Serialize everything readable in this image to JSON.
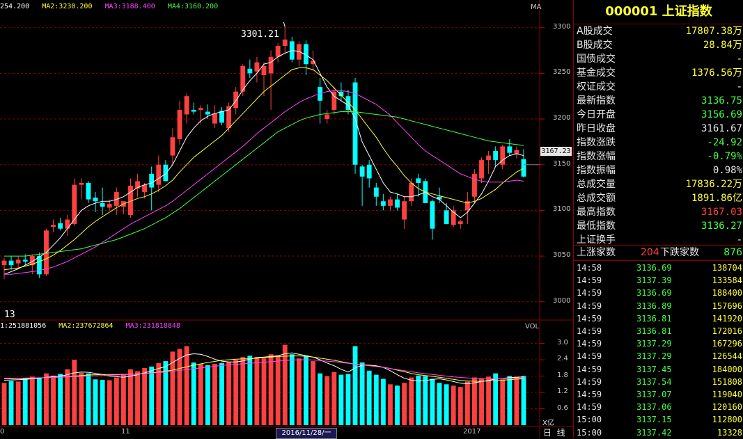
{
  "main_legend": {
    "ma1": "254.200",
    "ma2": "MA2:3230.200",
    "ma3": "MA3:3188.400",
    "ma4": "MA4:3160.200",
    "corner": "MA",
    "colors": {
      "ma1": "#ffffff",
      "ma2": "#ffff33",
      "ma3": "#ff44ff",
      "ma4": "#44ff44"
    }
  },
  "vol_legend": {
    "ma1": "1:251881056",
    "ma2": "MA2:237672864",
    "ma3": "MA3:231818848",
    "corner": "VOL"
  },
  "annotations": {
    "high_label": "3301.21",
    "low_label": "13"
  },
  "price_axis": {
    "ticks": [
      "3300",
      "3250",
      "3200",
      "3150",
      "3100",
      "3050",
      "3000"
    ],
    "current": "3167.23"
  },
  "vol_axis": {
    "ticks": [
      "3.0",
      "2.4",
      "1.8",
      "1.2",
      "0.6"
    ],
    "unit": "X亿"
  },
  "time_axis": {
    "labels": [
      "0",
      "11",
      "2016/11/28/一",
      "2017"
    ]
  },
  "bottom_tabs": {
    "day": "日",
    "line": "线"
  },
  "chart_data": {
    "type": "candlestick",
    "ylim": [
      2980,
      3315
    ],
    "vol_ylim": [
      0,
      3.4
    ],
    "colors": {
      "up": "#ff4040",
      "down": "#00ffff"
    },
    "candles": [
      {
        "o": 3040,
        "h": 3048,
        "l": 3025,
        "c": 3045,
        "v": 1.55
      },
      {
        "o": 3045,
        "h": 3050,
        "l": 3035,
        "c": 3040,
        "v": 1.62
      },
      {
        "o": 3042,
        "h": 3050,
        "l": 3038,
        "c": 3046,
        "v": 1.6
      },
      {
        "o": 3046,
        "h": 3052,
        "l": 3040,
        "c": 3044,
        "v": 1.7
      },
      {
        "o": 3040,
        "h": 3052,
        "l": 3030,
        "c": 3050,
        "v": 1.78
      },
      {
        "o": 3050,
        "h": 3054,
        "l": 3026,
        "c": 3030,
        "v": 1.72
      },
      {
        "o": 3030,
        "h": 3080,
        "l": 3028,
        "c": 3078,
        "v": 1.9
      },
      {
        "o": 3082,
        "h": 3090,
        "l": 3076,
        "c": 3084,
        "v": 1.82
      },
      {
        "o": 3086,
        "h": 3092,
        "l": 3078,
        "c": 3080,
        "v": 1.88
      },
      {
        "o": 3080,
        "h": 3095,
        "l": 3072,
        "c": 3090,
        "v": 2.05
      },
      {
        "o": 3085,
        "h": 3135,
        "l": 3083,
        "c": 3128,
        "v": 2.4
      },
      {
        "o": 3128,
        "h": 3135,
        "l": 3112,
        "c": 3130,
        "v": 1.92
      },
      {
        "o": 3130,
        "h": 3132,
        "l": 3108,
        "c": 3112,
        "v": 1.9
      },
      {
        "o": 3114,
        "h": 3120,
        "l": 3098,
        "c": 3110,
        "v": 1.68
      },
      {
        "o": 3108,
        "h": 3125,
        "l": 3095,
        "c": 3104,
        "v": 1.66
      },
      {
        "o": 3103,
        "h": 3112,
        "l": 3100,
        "c": 3107,
        "v": 1.65
      },
      {
        "o": 3105,
        "h": 3125,
        "l": 3095,
        "c": 3120,
        "v": 1.75
      },
      {
        "o": 3104,
        "h": 3110,
        "l": 3096,
        "c": 3110,
        "v": 1.88
      },
      {
        "o": 3095,
        "h": 3135,
        "l": 3092,
        "c": 3127,
        "v": 2.05
      },
      {
        "o": 3124,
        "h": 3140,
        "l": 3115,
        "c": 3132,
        "v": 1.98
      },
      {
        "o": 3120,
        "h": 3130,
        "l": 3113,
        "c": 3128,
        "v": 2.1
      },
      {
        "o": 3140,
        "h": 3148,
        "l": 3100,
        "c": 3125,
        "v": 2.15
      },
      {
        "o": 3128,
        "h": 3160,
        "l": 3120,
        "c": 3150,
        "v": 2.28
      },
      {
        "o": 3150,
        "h": 3155,
        "l": 3135,
        "c": 3132,
        "v": 2.35
      },
      {
        "o": 3160,
        "h": 3190,
        "l": 3150,
        "c": 3180,
        "v": 2.7
      },
      {
        "o": 3178,
        "h": 3220,
        "l": 3172,
        "c": 3210,
        "v": 2.8
      },
      {
        "o": 3205,
        "h": 3228,
        "l": 3195,
        "c": 3225,
        "v": 2.9
      },
      {
        "o": 3210,
        "h": 3218,
        "l": 3205,
        "c": 3208,
        "v": 2.3
      },
      {
        "o": 3210,
        "h": 3215,
        "l": 3195,
        "c": 3212,
        "v": 2.25
      },
      {
        "o": 3208,
        "h": 3216,
        "l": 3200,
        "c": 3205,
        "v": 2.2
      },
      {
        "o": 3195,
        "h": 3215,
        "l": 3190,
        "c": 3206,
        "v": 2.25
      },
      {
        "o": 3209,
        "h": 3213,
        "l": 3193,
        "c": 3196,
        "v": 2.28
      },
      {
        "o": 3190,
        "h": 3218,
        "l": 3186,
        "c": 3214,
        "v": 2.32
      },
      {
        "o": 3212,
        "h": 3235,
        "l": 3205,
        "c": 3230,
        "v": 2.4
      },
      {
        "o": 3230,
        "h": 3260,
        "l": 3225,
        "c": 3258,
        "v": 2.5
      },
      {
        "o": 3255,
        "h": 3265,
        "l": 3245,
        "c": 3250,
        "v": 2.55
      },
      {
        "o": 3252,
        "h": 3268,
        "l": 3240,
        "c": 3262,
        "v": 2.5
      },
      {
        "o": 3248,
        "h": 3262,
        "l": 3225,
        "c": 3258,
        "v": 2.45
      },
      {
        "o": 3250,
        "h": 3275,
        "l": 3210,
        "c": 3268,
        "v": 2.6
      },
      {
        "o": 3268,
        "h": 3283,
        "l": 3262,
        "c": 3280,
        "v": 2.55
      },
      {
        "o": 3280,
        "h": 3301,
        "l": 3272,
        "c": 3287,
        "v": 2.95
      },
      {
        "o": 3285,
        "h": 3290,
        "l": 3262,
        "c": 3265,
        "v": 2.6
      },
      {
        "o": 3265,
        "h": 3285,
        "l": 3258,
        "c": 3282,
        "v": 2.45
      },
      {
        "o": 3282,
        "h": 3286,
        "l": 3248,
        "c": 3260,
        "v": 2.55
      },
      {
        "o": 3260,
        "h": 3275,
        "l": 3253,
        "c": 3264,
        "v": 2.35
      },
      {
        "o": 3235,
        "h": 3245,
        "l": 3195,
        "c": 3220,
        "v": 1.9
      },
      {
        "o": 3200,
        "h": 3210,
        "l": 3195,
        "c": 3205,
        "v": 1.8
      },
      {
        "o": 3210,
        "h": 3235,
        "l": 3205,
        "c": 3230,
        "v": 1.95
      },
      {
        "o": 3230,
        "h": 3240,
        "l": 3220,
        "c": 3225,
        "v": 1.85
      },
      {
        "o": 3225,
        "h": 3232,
        "l": 3205,
        "c": 3210,
        "v": 1.88
      },
      {
        "o": 3240,
        "h": 3245,
        "l": 3140,
        "c": 3150,
        "v": 2.9
      },
      {
        "o": 3148,
        "h": 3150,
        "l": 3105,
        "c": 3137,
        "v": 2.3
      },
      {
        "o": 3150,
        "h": 3155,
        "l": 3125,
        "c": 3135,
        "v": 2.0
      },
      {
        "o": 3125,
        "h": 3130,
        "l": 3105,
        "c": 3115,
        "v": 1.85
      },
      {
        "o": 3110,
        "h": 3118,
        "l": 3100,
        "c": 3105,
        "v": 1.7
      },
      {
        "o": 3105,
        "h": 3115,
        "l": 3100,
        "c": 3112,
        "v": 1.5
      },
      {
        "o": 3112,
        "h": 3118,
        "l": 3100,
        "c": 3103,
        "v": 1.45
      },
      {
        "o": 3090,
        "h": 3115,
        "l": 3080,
        "c": 3110,
        "v": 1.55
      },
      {
        "o": 3110,
        "h": 3135,
        "l": 3105,
        "c": 3130,
        "v": 1.75
      },
      {
        "o": 3135,
        "h": 3140,
        "l": 3115,
        "c": 3130,
        "v": 1.82
      },
      {
        "o": 3132,
        "h": 3135,
        "l": 3110,
        "c": 3108,
        "v": 1.8
      },
      {
        "o": 3110,
        "h": 3112,
        "l": 3068,
        "c": 3080,
        "v": 1.7
      },
      {
        "o": 3115,
        "h": 3125,
        "l": 3108,
        "c": 3112,
        "v": 1.55
      },
      {
        "o": 3100,
        "h": 3108,
        "l": 3085,
        "c": 3085,
        "v": 1.5
      },
      {
        "o": 3084,
        "h": 3105,
        "l": 3082,
        "c": 3100,
        "v": 1.45
      },
      {
        "o": 3085,
        "h": 3090,
        "l": 3080,
        "c": 3088,
        "v": 1.4
      },
      {
        "o": 3100,
        "h": 3120,
        "l": 3085,
        "c": 3110,
        "v": 1.6
      },
      {
        "o": 3115,
        "h": 3145,
        "l": 3108,
        "c": 3140,
        "v": 1.75
      },
      {
        "o": 3135,
        "h": 3158,
        "l": 3130,
        "c": 3155,
        "v": 1.7
      },
      {
        "o": 3155,
        "h": 3165,
        "l": 3140,
        "c": 3160,
        "v": 1.78
      },
      {
        "o": 3165,
        "h": 3170,
        "l": 3148,
        "c": 3155,
        "v": 1.9
      },
      {
        "o": 3150,
        "h": 3172,
        "l": 3145,
        "c": 3170,
        "v": 1.68
      },
      {
        "o": 3170,
        "h": 3178,
        "l": 3160,
        "c": 3163,
        "v": 1.8
      },
      {
        "o": 3162,
        "h": 3170,
        "l": 3157,
        "c": 3166,
        "v": 1.78
      },
      {
        "o": 3156,
        "h": 3167,
        "l": 3136,
        "c": 3137,
        "v": 1.8
      }
    ],
    "ma5": [
      3030,
      3033,
      3036,
      3040,
      3044,
      3049,
      3054,
      3062,
      3070,
      3080,
      3090,
      3100,
      3105,
      3108,
      3110,
      3110,
      3112,
      3115,
      3120,
      3125,
      3128,
      3130,
      3135,
      3140,
      3150,
      3165,
      3180,
      3190,
      3198,
      3203,
      3206,
      3208,
      3210,
      3220,
      3232,
      3242,
      3250,
      3260,
      3262,
      3268,
      3272,
      3275,
      3274,
      3270,
      3265,
      3250,
      3235,
      3225,
      3220,
      3215,
      3200,
      3175,
      3160,
      3145,
      3130,
      3120,
      3118,
      3115,
      3115,
      3117,
      3120,
      3115,
      3112,
      3105,
      3098,
      3092,
      3098,
      3108,
      3118,
      3132,
      3148,
      3155,
      3160,
      3162,
      3160
    ],
    "ma10": [
      3035,
      3036,
      3037,
      3039,
      3041,
      3044,
      3047,
      3051,
      3056,
      3062,
      3068,
      3075,
      3082,
      3088,
      3093,
      3098,
      3103,
      3107,
      3110,
      3113,
      3115,
      3118,
      3122,
      3127,
      3133,
      3142,
      3150,
      3158,
      3164,
      3170,
      3176,
      3182,
      3190,
      3198,
      3206,
      3214,
      3222,
      3230,
      3236,
      3242,
      3248,
      3254,
      3256,
      3256,
      3254,
      3248,
      3242,
      3234,
      3226,
      3218,
      3210,
      3200,
      3190,
      3180,
      3168,
      3157,
      3148,
      3138,
      3130,
      3124,
      3120,
      3118,
      3116,
      3114,
      3112,
      3110,
      3108,
      3110,
      3113,
      3118,
      3123,
      3130,
      3136,
      3142,
      3146
    ],
    "ma20": [
      3030,
      3030,
      3031,
      3032,
      3033,
      3034,
      3036,
      3038,
      3041,
      3044,
      3048,
      3052,
      3056,
      3060,
      3065,
      3070,
      3075,
      3080,
      3085,
      3089,
      3093,
      3097,
      3101,
      3105,
      3110,
      3116,
      3122,
      3128,
      3134,
      3140,
      3146,
      3152,
      3158,
      3164,
      3170,
      3177,
      3184,
      3190,
      3196,
      3202,
      3208,
      3213,
      3218,
      3222,
      3225,
      3228,
      3230,
      3231,
      3231,
      3230,
      3228,
      3224,
      3220,
      3216,
      3210,
      3204,
      3196,
      3188,
      3180,
      3172,
      3165,
      3160,
      3155,
      3150,
      3145,
      3140,
      3137,
      3134,
      3132,
      3131,
      3131,
      3131,
      3132,
      3133,
      3132
    ],
    "ma60": [
      3050,
      3050,
      3050,
      3050,
      3051,
      3052,
      3053,
      3054,
      3055,
      3056,
      3057,
      3058,
      3060,
      3062,
      3064,
      3066,
      3068,
      3071,
      3074,
      3077,
      3080,
      3084,
      3088,
      3092,
      3097,
      3102,
      3108,
      3114,
      3120,
      3126,
      3132,
      3138,
      3144,
      3150,
      3156,
      3162,
      3168,
      3174,
      3180,
      3186,
      3190,
      3194,
      3198,
      3201,
      3203,
      3205,
      3206,
      3207,
      3208,
      3208,
      3208,
      3207,
      3206,
      3205,
      3204,
      3203,
      3202,
      3200,
      3198,
      3196,
      3194,
      3192,
      3190,
      3188,
      3186,
      3184,
      3182,
      3180,
      3178,
      3176,
      3175,
      3174,
      3173,
      3172,
      3171
    ],
    "vol_ma1": [
      1.65,
      1.66,
      1.67,
      1.68,
      1.7,
      1.72,
      1.76,
      1.78,
      1.8,
      1.85,
      1.92,
      1.95,
      1.94,
      1.9,
      1.86,
      1.8,
      1.78,
      1.76,
      1.8,
      1.85,
      1.92,
      2.0,
      2.08,
      2.15,
      2.3,
      2.45,
      2.58,
      2.62,
      2.6,
      2.52,
      2.42,
      2.35,
      2.32,
      2.32,
      2.36,
      2.42,
      2.48,
      2.5,
      2.52,
      2.55,
      2.62,
      2.65,
      2.6,
      2.55,
      2.5,
      2.4,
      2.28,
      2.18,
      2.05,
      1.95,
      2.1,
      2.2,
      2.2,
      2.18,
      2.12,
      2.0,
      1.85,
      1.72,
      1.65,
      1.62,
      1.63,
      1.68,
      1.7,
      1.66,
      1.6,
      1.54,
      1.52,
      1.55,
      1.6,
      1.64,
      1.7,
      1.72,
      1.74,
      1.76,
      1.77
    ],
    "vol_ma2": [
      1.7,
      1.7,
      1.71,
      1.71,
      1.72,
      1.73,
      1.74,
      1.75,
      1.76,
      1.78,
      1.8,
      1.82,
      1.84,
      1.85,
      1.86,
      1.86,
      1.86,
      1.86,
      1.87,
      1.88,
      1.9,
      1.92,
      1.95,
      1.98,
      2.02,
      2.08,
      2.14,
      2.2,
      2.25,
      2.3,
      2.34,
      2.38,
      2.4,
      2.42,
      2.43,
      2.44,
      2.46,
      2.48,
      2.5,
      2.52,
      2.53,
      2.54,
      2.54,
      2.53,
      2.5,
      2.46,
      2.42,
      2.38,
      2.33,
      2.28,
      2.24,
      2.22,
      2.2,
      2.17,
      2.13,
      2.08,
      2.02,
      1.96,
      1.9,
      1.85,
      1.82,
      1.79,
      1.76,
      1.72,
      1.68,
      1.64,
      1.62,
      1.61,
      1.61,
      1.62,
      1.63,
      1.65,
      1.67,
      1.69,
      1.7
    ],
    "vol_ma3": [
      1.72,
      1.72,
      1.72,
      1.73,
      1.73,
      1.74,
      1.74,
      1.75,
      1.76,
      1.77,
      1.78,
      1.79,
      1.8,
      1.81,
      1.82,
      1.83,
      1.84,
      1.85,
      1.86,
      1.87,
      1.89,
      1.91,
      1.93,
      1.95,
      1.98,
      2.01,
      2.04,
      2.07,
      2.1,
      2.13,
      2.16,
      2.19,
      2.21,
      2.23,
      2.25,
      2.27,
      2.29,
      2.31,
      2.33,
      2.35,
      2.37,
      2.39,
      2.4,
      2.4,
      2.39,
      2.37,
      2.35,
      2.33,
      2.3,
      2.27,
      2.24,
      2.21,
      2.18,
      2.15,
      2.12,
      2.08,
      2.04,
      2.0,
      1.96,
      1.92,
      1.89,
      1.86,
      1.83,
      1.8,
      1.77,
      1.75,
      1.73,
      1.72,
      1.71,
      1.71,
      1.71,
      1.71,
      1.72,
      1.72,
      1.73
    ]
  },
  "quote_panel": {
    "title": "000001  上证指数",
    "rows": [
      {
        "label": "A股成交",
        "value": "17807.38万",
        "color": "#ffff33"
      },
      {
        "label": "B股成交",
        "value": "28.84万",
        "color": "#ffff33"
      },
      {
        "label": "国债成交",
        "value": "-",
        "color": "#ffff33"
      },
      {
        "label": "基金成交",
        "value": "1376.56万",
        "color": "#ffff33"
      },
      {
        "label": "权证成交",
        "value": "-",
        "color": "#ffff33"
      },
      {
        "label": "最新指数",
        "value": "3136.75",
        "color": "#44ff44"
      },
      {
        "label": "今日开盘",
        "value": "3156.69",
        "color": "#44ff44"
      },
      {
        "label": "昨日收盘",
        "value": "3161.67",
        "color": "#e6e6e6"
      },
      {
        "label": "指数涨跌",
        "value": "-24.92",
        "color": "#44ff44"
      },
      {
        "label": "指数涨幅",
        "value": "-0.79%",
        "color": "#44ff44"
      },
      {
        "label": "指数振幅",
        "value": "0.98%",
        "color": "#e6e6e6"
      },
      {
        "label": "总成交量",
        "value": "17836.22万",
        "color": "#ffff33"
      },
      {
        "label": "总成交额",
        "value": "1891.86亿",
        "color": "#ffff33"
      },
      {
        "label": "最高指数",
        "value": "3167.03",
        "color": "#ff4040"
      },
      {
        "label": "最低指数",
        "value": "3136.27",
        "color": "#44ff44"
      },
      {
        "label": "上证换手",
        "value": "-",
        "color": "#e6e6e6"
      }
    ],
    "updown": {
      "up_label": "上涨家数",
      "up_value": "204",
      "down_label": "下跌家数",
      "down_value": "876"
    }
  },
  "ticks": [
    {
      "time": "14:58",
      "price": "3136.69",
      "vol": "138704"
    },
    {
      "time": "14:59",
      "price": "3137.39",
      "vol": "133584"
    },
    {
      "time": "14:59",
      "price": "3136.69",
      "vol": "188400"
    },
    {
      "time": "14:59",
      "price": "3136.89",
      "vol": "157696"
    },
    {
      "time": "14:59",
      "price": "3136.81",
      "vol": "141920"
    },
    {
      "time": "14:59",
      "price": "3136.81",
      "vol": "172016"
    },
    {
      "time": "14:59",
      "price": "3137.29",
      "vol": "167296"
    },
    {
      "time": "14:59",
      "price": "3137.29",
      "vol": "126544"
    },
    {
      "time": "14:59",
      "price": "3137.45",
      "vol": "184000"
    },
    {
      "time": "14:59",
      "price": "3137.54",
      "vol": "151808"
    },
    {
      "time": "14:59",
      "price": "3137.07",
      "vol": "119040"
    },
    {
      "time": "14:59",
      "price": "3137.06",
      "vol": "120160"
    },
    {
      "time": "15:00",
      "price": "3137.15",
      "vol": "112800"
    },
    {
      "time": "15:00",
      "price": "3137.42",
      "vol": "13328"
    }
  ]
}
